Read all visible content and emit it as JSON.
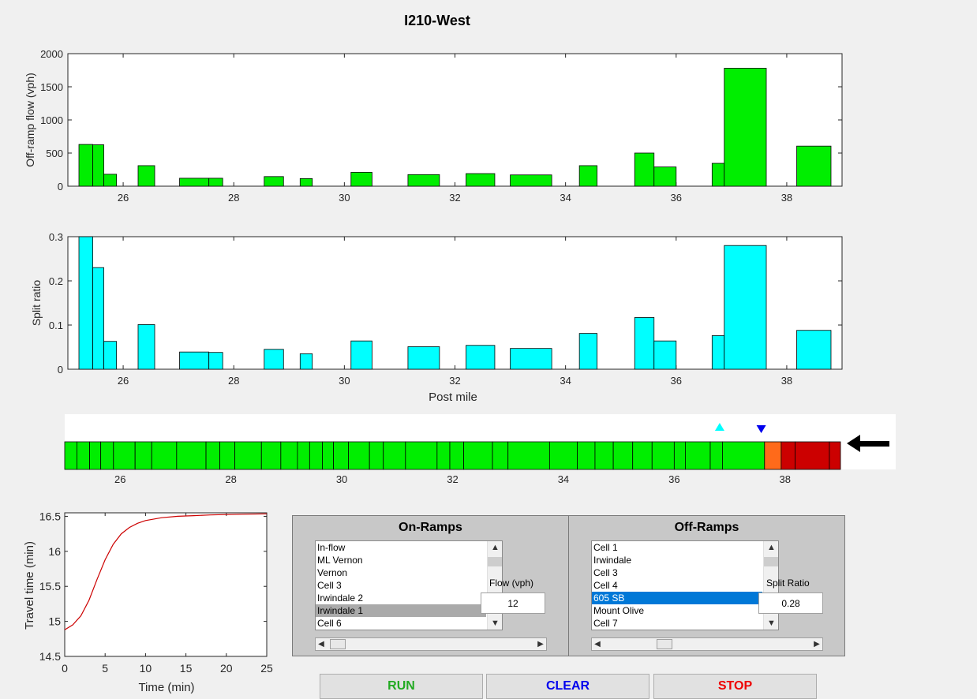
{
  "figure": {
    "title": "I210-West"
  },
  "colors": {
    "flow_bar": "#00ee00",
    "split_bar": "#00ffff",
    "cell_normal": "#00ee00",
    "cell_orange": "#ff6a1a",
    "cell_red": "#cc0000",
    "marker_up": "#00ffff",
    "marker_down": "#0000ee",
    "travel_line": "#cc0000",
    "run": "#22aa22",
    "clear": "#0000ee",
    "stop": "#ee0000"
  },
  "chart_data": [
    {
      "type": "bar",
      "ylabel": "Off-ramp flow (vph)",
      "xlabel": "",
      "xlim": [
        25.0,
        39.0
      ],
      "ylim": [
        0,
        2000
      ],
      "xticks": [
        26,
        28,
        30,
        32,
        34,
        36,
        38
      ],
      "yticks": [
        0,
        500,
        1000,
        1500,
        2000
      ],
      "bars": [
        {
          "x0": 25.2,
          "x1": 25.45,
          "value": 630
        },
        {
          "x0": 25.45,
          "x1": 25.65,
          "value": 625
        },
        {
          "x0": 25.65,
          "x1": 25.88,
          "value": 180
        },
        {
          "x0": 26.27,
          "x1": 26.57,
          "value": 310
        },
        {
          "x0": 27.02,
          "x1": 27.55,
          "value": 120
        },
        {
          "x0": 27.55,
          "x1": 27.8,
          "value": 120
        },
        {
          "x0": 28.55,
          "x1": 28.9,
          "value": 145
        },
        {
          "x0": 29.2,
          "x1": 29.42,
          "value": 115
        },
        {
          "x0": 30.12,
          "x1": 30.5,
          "value": 210
        },
        {
          "x0": 31.15,
          "x1": 31.72,
          "value": 175
        },
        {
          "x0": 32.2,
          "x1": 32.72,
          "value": 190
        },
        {
          "x0": 33.0,
          "x1": 33.75,
          "value": 170
        },
        {
          "x0": 34.25,
          "x1": 34.57,
          "value": 310
        },
        {
          "x0": 35.25,
          "x1": 35.6,
          "value": 500
        },
        {
          "x0": 35.6,
          "x1": 36.0,
          "value": 290
        },
        {
          "x0": 36.65,
          "x1": 36.87,
          "value": 345
        },
        {
          "x0": 36.87,
          "x1": 37.63,
          "value": 1780
        },
        {
          "x0": 38.18,
          "x1": 38.8,
          "value": 605
        }
      ]
    },
    {
      "type": "bar",
      "ylabel": "Split ratio",
      "xlabel": "Post mile",
      "xlim": [
        25.0,
        39.0
      ],
      "ylim": [
        0,
        0.3
      ],
      "xticks": [
        26,
        28,
        30,
        32,
        34,
        36,
        38
      ],
      "yticks": [
        0,
        0.1,
        0.2,
        0.3
      ],
      "bars": [
        {
          "x0": 25.2,
          "x1": 25.45,
          "value": 0.3
        },
        {
          "x0": 25.45,
          "x1": 25.65,
          "value": 0.23
        },
        {
          "x0": 25.65,
          "x1": 25.88,
          "value": 0.063
        },
        {
          "x0": 26.27,
          "x1": 26.57,
          "value": 0.101
        },
        {
          "x0": 27.02,
          "x1": 27.55,
          "value": 0.039
        },
        {
          "x0": 27.55,
          "x1": 27.8,
          "value": 0.038
        },
        {
          "x0": 28.55,
          "x1": 28.9,
          "value": 0.045
        },
        {
          "x0": 29.2,
          "x1": 29.42,
          "value": 0.035
        },
        {
          "x0": 30.12,
          "x1": 30.5,
          "value": 0.064
        },
        {
          "x0": 31.15,
          "x1": 31.72,
          "value": 0.051
        },
        {
          "x0": 32.2,
          "x1": 32.72,
          "value": 0.054
        },
        {
          "x0": 33.0,
          "x1": 33.75,
          "value": 0.047
        },
        {
          "x0": 34.25,
          "x1": 34.57,
          "value": 0.081
        },
        {
          "x0": 35.25,
          "x1": 35.6,
          "value": 0.117
        },
        {
          "x0": 35.6,
          "x1": 36.0,
          "value": 0.064
        },
        {
          "x0": 36.65,
          "x1": 36.87,
          "value": 0.076
        },
        {
          "x0": 36.87,
          "x1": 37.63,
          "value": 0.28
        },
        {
          "x0": 38.18,
          "x1": 38.8,
          "value": 0.088
        }
      ]
    },
    {
      "type": "heatmap",
      "xlim": [
        25.0,
        39.0
      ],
      "xticks": [
        26,
        28,
        30,
        32,
        34,
        36,
        38
      ],
      "cell_boundaries": [
        25.0,
        25.22,
        25.45,
        25.65,
        25.88,
        26.27,
        26.57,
        27.02,
        27.55,
        27.8,
        28.07,
        28.55,
        28.9,
        29.2,
        29.42,
        29.65,
        29.85,
        30.12,
        30.5,
        30.75,
        31.15,
        31.72,
        31.95,
        32.2,
        32.72,
        33.0,
        33.75,
        34.25,
        34.57,
        34.9,
        35.25,
        35.6,
        36.0,
        36.2,
        36.65,
        36.87,
        37.63,
        37.93,
        38.18,
        38.8,
        39.0
      ],
      "cell_states": [
        "g",
        "g",
        "g",
        "g",
        "g",
        "g",
        "g",
        "g",
        "g",
        "g",
        "g",
        "g",
        "g",
        "g",
        "g",
        "g",
        "g",
        "g",
        "g",
        "g",
        "g",
        "g",
        "g",
        "g",
        "g",
        "g",
        "g",
        "g",
        "g",
        "g",
        "g",
        "g",
        "g",
        "g",
        "g",
        "g",
        "o",
        "r",
        "r",
        "r"
      ],
      "marker_up_x": 36.82,
      "marker_down_x": 37.57,
      "direction": "westbound"
    },
    {
      "type": "line",
      "xlabel": "Time (min)",
      "ylabel": "Travel time (min)",
      "xlim": [
        0,
        25
      ],
      "ylim": [
        14.5,
        16.55
      ],
      "xticks": [
        0,
        5,
        10,
        15,
        20,
        25
      ],
      "yticks": [
        14.5,
        15,
        15.5,
        16,
        16.5
      ],
      "ytick_labels": [
        "14.5",
        "15",
        "15.5",
        "16",
        "16.5"
      ],
      "x": [
        0,
        1,
        2,
        3,
        4,
        5,
        6,
        7,
        8,
        9,
        10,
        12,
        14,
        16,
        18,
        20,
        22,
        25
      ],
      "y": [
        14.88,
        14.95,
        15.08,
        15.3,
        15.6,
        15.88,
        16.1,
        16.25,
        16.34,
        16.4,
        16.44,
        16.48,
        16.5,
        16.51,
        16.52,
        16.525,
        16.53,
        16.535
      ]
    }
  ],
  "onramps": {
    "title": "On-Ramps",
    "items": [
      "In-flow",
      "ML Vernon",
      "Vernon",
      "Cell 3",
      "Irwindale 2",
      "Irwindale 1",
      "Cell 6"
    ],
    "selected_index": 5,
    "field_label": "Flow (vph)",
    "field_value": "12"
  },
  "offramps": {
    "title": "Off-Ramps",
    "items": [
      "Cell 1",
      "Irwindale",
      "Cell 3",
      "Cell 4",
      "605 SB",
      "Mount Olive",
      "Cell 7"
    ],
    "selected_index": 4,
    "field_label": "Split Ratio",
    "field_value": "0.28"
  },
  "buttons": {
    "run": "RUN",
    "clear": "CLEAR",
    "stop": "STOP"
  }
}
